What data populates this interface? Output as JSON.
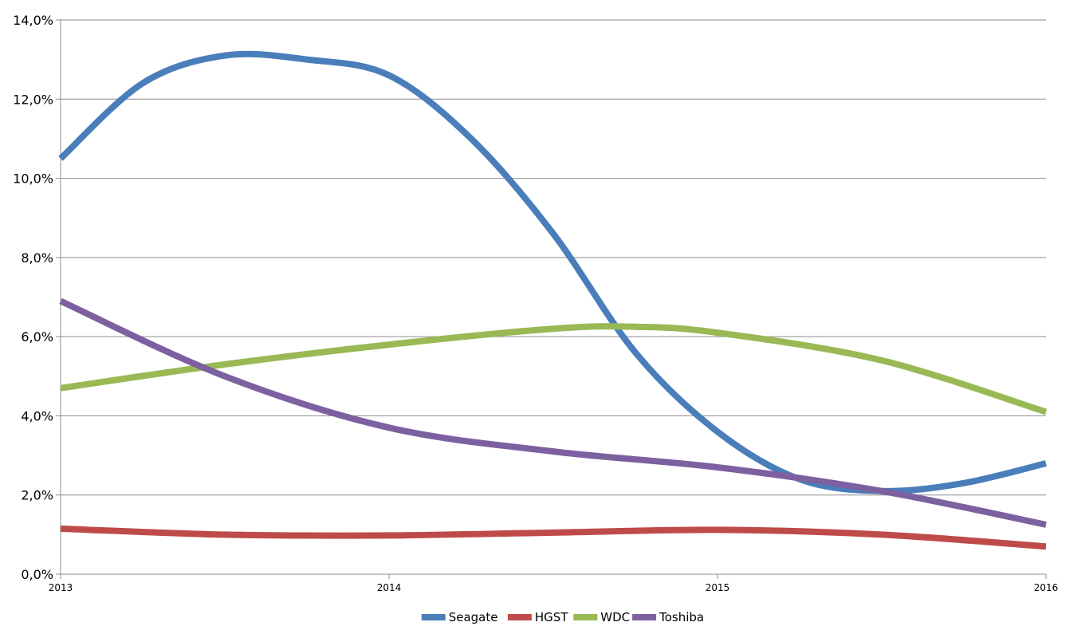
{
  "chart_data": {
    "type": "line",
    "title": "",
    "xlabel": "",
    "ylabel": "",
    "x_ticks": [
      "2013",
      "2014",
      "2015",
      "2016"
    ],
    "y_ticks": [
      "0,0%",
      "2,0%",
      "4,0%",
      "6,0%",
      "8,0%",
      "10,0%",
      "12,0%",
      "14,0%"
    ],
    "ylim": [
      0,
      14
    ],
    "xlim": [
      2013,
      2016
    ],
    "grid": "horizontal",
    "legend_position": "bottom",
    "smooth": true,
    "series": [
      {
        "name": "Seagate",
        "color": "#4a7ebb",
        "points": [
          [
            2013.0,
            10.5
          ],
          [
            2013.25,
            12.4
          ],
          [
            2013.5,
            13.1
          ],
          [
            2013.75,
            13.0
          ],
          [
            2014.0,
            12.6
          ],
          [
            2014.25,
            11.0
          ],
          [
            2014.5,
            8.6
          ],
          [
            2014.75,
            5.6
          ],
          [
            2015.0,
            3.6
          ],
          [
            2015.25,
            2.4
          ],
          [
            2015.5,
            2.1
          ],
          [
            2015.75,
            2.3
          ],
          [
            2016.0,
            2.8
          ]
        ]
      },
      {
        "name": "HGST",
        "color": "#be4b48",
        "points": [
          [
            2013.0,
            1.15
          ],
          [
            2013.5,
            1.0
          ],
          [
            2014.0,
            0.98
          ],
          [
            2014.5,
            1.05
          ],
          [
            2015.0,
            1.12
          ],
          [
            2015.5,
            1.0
          ],
          [
            2016.0,
            0.7
          ]
        ]
      },
      {
        "name": "WDC",
        "color": "#98b954",
        "points": [
          [
            2013.0,
            4.7
          ],
          [
            2013.5,
            5.3
          ],
          [
            2014.0,
            5.8
          ],
          [
            2014.5,
            6.2
          ],
          [
            2014.75,
            6.25
          ],
          [
            2015.0,
            6.1
          ],
          [
            2015.5,
            5.4
          ],
          [
            2016.0,
            4.1
          ]
        ]
      },
      {
        "name": "Toshiba",
        "color": "#7d60a0",
        "points": [
          [
            2013.0,
            6.9
          ],
          [
            2013.5,
            5.0
          ],
          [
            2014.0,
            3.7
          ],
          [
            2014.5,
            3.1
          ],
          [
            2015.0,
            2.7
          ],
          [
            2015.5,
            2.1
          ],
          [
            2016.0,
            1.25
          ]
        ]
      }
    ]
  }
}
